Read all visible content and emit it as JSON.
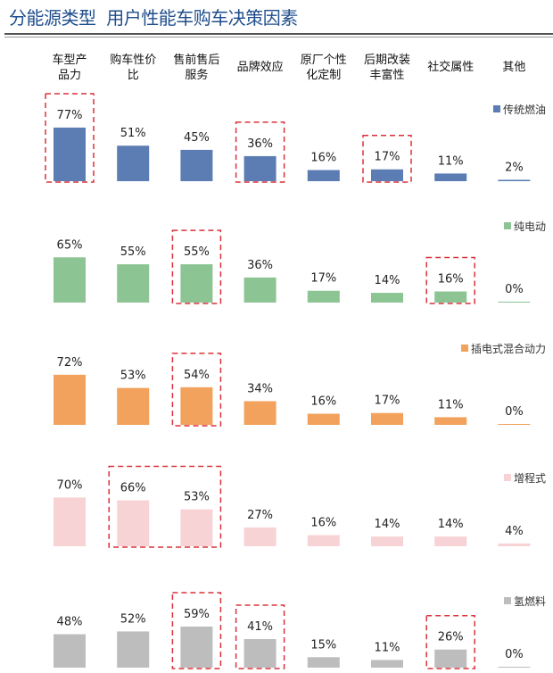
{
  "title": "分能源类型  用户性能车购车决策因素",
  "chart_data": {
    "type": "bar",
    "categories": [
      [
        "车型产",
        "品力"
      ],
      [
        "购车性价",
        "比"
      ],
      [
        "售前售后",
        "服务"
      ],
      [
        "品牌效应"
      ],
      [
        "原厂个性",
        "化定制"
      ],
      [
        "后期改装",
        "丰富性"
      ],
      [
        "社交属性"
      ],
      [
        "其他"
      ]
    ],
    "unit": "%",
    "series": [
      {
        "name": "传统燃油",
        "color": "#5b7db3",
        "values": [
          77,
          51,
          45,
          36,
          16,
          17,
          11,
          2
        ],
        "highlighted": [
          [
            0,
            0
          ],
          [
            3,
            3
          ],
          [
            5,
            5
          ]
        ]
      },
      {
        "name": "纯电动",
        "color": "#8cc494",
        "values": [
          65,
          55,
          55,
          36,
          17,
          14,
          16,
          0
        ],
        "highlighted": [
          [
            2,
            2
          ],
          [
            6,
            6
          ]
        ]
      },
      {
        "name": "插电式混合动力",
        "color": "#f2a25c",
        "values": [
          72,
          53,
          54,
          34,
          16,
          17,
          11,
          0
        ],
        "highlighted": [
          [
            2,
            2
          ]
        ]
      },
      {
        "name": "增程式",
        "color": "#f8d3d5",
        "values": [
          70,
          66,
          53,
          27,
          16,
          14,
          14,
          4
        ],
        "highlighted": [
          [
            1,
            2
          ]
        ]
      },
      {
        "name": "氢燃料",
        "color": "#bdbdbd",
        "values": [
          48,
          52,
          59,
          41,
          15,
          11,
          26,
          0
        ],
        "highlighted": [
          [
            2,
            2
          ],
          [
            3,
            3
          ],
          [
            6,
            6
          ]
        ]
      }
    ],
    "highlight_color": "#d9323a",
    "ylim": [
      0,
      100
    ],
    "legend": "right of each panel"
  }
}
